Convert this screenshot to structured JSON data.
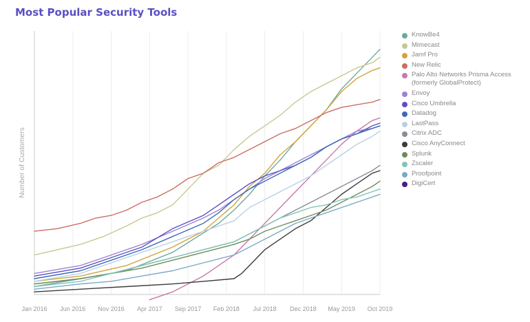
{
  "title": "Most Popular Security Tools",
  "chart_data": {
    "type": "line",
    "title": "Most Popular Security Tools",
    "xlabel": "",
    "ylabel": "Number of Customers",
    "x_ticks": [
      "Jan 2016",
      "Jun 2016",
      "Nov 2016",
      "Apr 2017",
      "Sep 2017",
      "Feb 2018",
      "Jul 2018",
      "Dec 2018",
      "May 2019",
      "Oct 2019"
    ],
    "xlim": [
      0,
      45
    ],
    "ylim": [
      0,
      100
    ],
    "grid": "vertical",
    "legend_position": "right",
    "series": [
      {
        "name": "KnowBe4",
        "color": "#6aab9c",
        "values": [
          [
            0,
            3
          ],
          [
            6,
            6
          ],
          [
            12,
            9
          ],
          [
            18,
            16
          ],
          [
            24,
            27
          ],
          [
            26,
            32
          ],
          [
            28,
            38
          ],
          [
            30,
            45
          ],
          [
            32,
            51
          ],
          [
            34,
            58
          ],
          [
            36,
            64
          ],
          [
            38,
            70
          ],
          [
            40,
            78
          ],
          [
            42,
            84
          ],
          [
            44,
            90
          ],
          [
            45,
            93
          ]
        ]
      },
      {
        "name": "Mimecast",
        "color": "#c6c98f",
        "values": [
          [
            0,
            15
          ],
          [
            3,
            17
          ],
          [
            6,
            19
          ],
          [
            9,
            22
          ],
          [
            12,
            26
          ],
          [
            14,
            29
          ],
          [
            16,
            31
          ],
          [
            18,
            34
          ],
          [
            20,
            40
          ],
          [
            22,
            46
          ],
          [
            24,
            49
          ],
          [
            26,
            55
          ],
          [
            28,
            60
          ],
          [
            30,
            64
          ],
          [
            32,
            68
          ],
          [
            34,
            73
          ],
          [
            36,
            77
          ],
          [
            38,
            80
          ],
          [
            40,
            83
          ],
          [
            42,
            86
          ],
          [
            44,
            88
          ],
          [
            45,
            90
          ]
        ]
      },
      {
        "name": "Jamf Pro",
        "color": "#d4a23b",
        "values": [
          [
            0,
            5
          ],
          [
            6,
            7
          ],
          [
            12,
            11
          ],
          [
            18,
            18
          ],
          [
            22,
            24
          ],
          [
            24,
            29
          ],
          [
            26,
            34
          ],
          [
            28,
            41
          ],
          [
            30,
            46
          ],
          [
            32,
            53
          ],
          [
            34,
            58
          ],
          [
            36,
            64
          ],
          [
            38,
            70
          ],
          [
            40,
            77
          ],
          [
            42,
            82
          ],
          [
            44,
            85
          ],
          [
            45,
            86
          ]
        ]
      },
      {
        "name": "New Relic",
        "color": "#cc6e63",
        "values": [
          [
            0,
            24
          ],
          [
            3,
            25
          ],
          [
            6,
            27
          ],
          [
            8,
            29
          ],
          [
            10,
            30
          ],
          [
            12,
            32
          ],
          [
            14,
            35
          ],
          [
            16,
            37
          ],
          [
            18,
            40
          ],
          [
            20,
            44
          ],
          [
            22,
            46
          ],
          [
            24,
            50
          ],
          [
            26,
            52
          ],
          [
            28,
            55
          ],
          [
            30,
            58
          ],
          [
            32,
            61
          ],
          [
            34,
            63
          ],
          [
            36,
            66
          ],
          [
            38,
            69
          ],
          [
            40,
            71
          ],
          [
            42,
            72
          ],
          [
            44,
            73
          ],
          [
            45,
            74
          ]
        ]
      },
      {
        "name": "Palo Alto Networks Prisma Access (formerly GlobalProtect)",
        "color": "#c877aa",
        "values": [
          [
            15,
            -2
          ],
          [
            18,
            1
          ],
          [
            20,
            4
          ],
          [
            22,
            7
          ],
          [
            24,
            11
          ],
          [
            26,
            15
          ],
          [
            28,
            21
          ],
          [
            30,
            27
          ],
          [
            32,
            33
          ],
          [
            34,
            39
          ],
          [
            36,
            45
          ],
          [
            38,
            51
          ],
          [
            40,
            57
          ],
          [
            42,
            62
          ],
          [
            44,
            66
          ],
          [
            45,
            67
          ]
        ]
      },
      {
        "name": "Envoy",
        "color": "#9d82d6",
        "values": [
          [
            0,
            8
          ],
          [
            6,
            11
          ],
          [
            10,
            15
          ],
          [
            14,
            19
          ],
          [
            18,
            24
          ],
          [
            22,
            29
          ],
          [
            24,
            32
          ],
          [
            26,
            36
          ],
          [
            28,
            40
          ],
          [
            30,
            44
          ],
          [
            32,
            47
          ],
          [
            34,
            50
          ],
          [
            36,
            53
          ],
          [
            38,
            56
          ],
          [
            40,
            59
          ],
          [
            42,
            62
          ],
          [
            44,
            63
          ],
          [
            45,
            64
          ]
        ]
      },
      {
        "name": "Cisco Umbrella",
        "color": "#5b4fc4",
        "values": [
          [
            0,
            7
          ],
          [
            6,
            10
          ],
          [
            10,
            14
          ],
          [
            14,
            18
          ],
          [
            18,
            25
          ],
          [
            22,
            30
          ],
          [
            24,
            34
          ],
          [
            26,
            38
          ],
          [
            28,
            42
          ],
          [
            30,
            45
          ],
          [
            32,
            47
          ],
          [
            34,
            49
          ],
          [
            36,
            52
          ],
          [
            38,
            56
          ],
          [
            40,
            59
          ],
          [
            42,
            61
          ],
          [
            44,
            64
          ],
          [
            45,
            65
          ]
        ]
      },
      {
        "name": "Datadog",
        "color": "#3d6ab5",
        "values": [
          [
            0,
            6
          ],
          [
            6,
            9
          ],
          [
            10,
            13
          ],
          [
            14,
            17
          ],
          [
            18,
            22
          ],
          [
            22,
            27
          ],
          [
            24,
            31
          ],
          [
            26,
            36
          ],
          [
            28,
            40
          ],
          [
            30,
            43
          ],
          [
            32,
            46
          ],
          [
            34,
            49
          ],
          [
            36,
            52
          ],
          [
            38,
            56
          ],
          [
            40,
            59
          ],
          [
            42,
            61
          ],
          [
            44,
            63
          ],
          [
            45,
            64
          ]
        ]
      },
      {
        "name": "LastPass",
        "color": "#b8d0e6",
        "values": [
          [
            0,
            5
          ],
          [
            6,
            8
          ],
          [
            10,
            12
          ],
          [
            14,
            16
          ],
          [
            18,
            20
          ],
          [
            22,
            24
          ],
          [
            26,
            28
          ],
          [
            28,
            33
          ],
          [
            30,
            36
          ],
          [
            32,
            39
          ],
          [
            34,
            42
          ],
          [
            36,
            45
          ],
          [
            38,
            49
          ],
          [
            40,
            53
          ],
          [
            42,
            57
          ],
          [
            44,
            60
          ],
          [
            45,
            62
          ]
        ]
      },
      {
        "name": "Citrix ADC",
        "color": "#868d95",
        "values": [
          [
            0,
            4
          ],
          [
            6,
            6
          ],
          [
            10,
            8
          ],
          [
            14,
            11
          ],
          [
            18,
            14
          ],
          [
            22,
            17
          ],
          [
            26,
            20
          ],
          [
            28,
            23
          ],
          [
            30,
            26
          ],
          [
            32,
            29
          ],
          [
            34,
            32
          ],
          [
            36,
            35
          ],
          [
            38,
            38
          ],
          [
            40,
            41
          ],
          [
            42,
            44
          ],
          [
            44,
            47
          ],
          [
            45,
            49
          ]
        ]
      },
      {
        "name": "Cisco AnyConnect",
        "color": "#3b3b3b",
        "values": [
          [
            0,
            1
          ],
          [
            6,
            2
          ],
          [
            12,
            3
          ],
          [
            18,
            4
          ],
          [
            22,
            5
          ],
          [
            26,
            6
          ],
          [
            27,
            8
          ],
          [
            28,
            11
          ],
          [
            30,
            17
          ],
          [
            32,
            21
          ],
          [
            34,
            25
          ],
          [
            36,
            28
          ],
          [
            38,
            33
          ],
          [
            40,
            38
          ],
          [
            42,
            42
          ],
          [
            44,
            46
          ],
          [
            45,
            47
          ]
        ]
      },
      {
        "name": "Splunk",
        "color": "#6e8b5c",
        "values": [
          [
            0,
            4
          ],
          [
            6,
            6
          ],
          [
            10,
            8
          ],
          [
            14,
            10
          ],
          [
            18,
            13
          ],
          [
            22,
            16
          ],
          [
            26,
            19
          ],
          [
            28,
            21
          ],
          [
            30,
            24
          ],
          [
            32,
            26
          ],
          [
            34,
            28
          ],
          [
            36,
            30
          ],
          [
            38,
            32
          ],
          [
            40,
            35
          ],
          [
            42,
            38
          ],
          [
            44,
            41
          ],
          [
            45,
            43
          ]
        ]
      },
      {
        "name": "Zscaler",
        "color": "#7fc5b8",
        "values": [
          [
            0,
            3
          ],
          [
            6,
            5
          ],
          [
            10,
            8
          ],
          [
            14,
            11
          ],
          [
            18,
            14
          ],
          [
            22,
            17
          ],
          [
            26,
            20
          ],
          [
            28,
            23
          ],
          [
            30,
            26
          ],
          [
            32,
            29
          ],
          [
            34,
            31
          ],
          [
            36,
            33
          ],
          [
            38,
            34
          ],
          [
            40,
            36
          ],
          [
            42,
            37
          ],
          [
            44,
            39
          ],
          [
            45,
            40
          ]
        ]
      },
      {
        "name": "Proofpoint",
        "color": "#7aa9c6",
        "values": [
          [
            0,
            2
          ],
          [
            6,
            4
          ],
          [
            10,
            5
          ],
          [
            14,
            7
          ],
          [
            18,
            9
          ],
          [
            22,
            12
          ],
          [
            26,
            15
          ],
          [
            28,
            18
          ],
          [
            30,
            21
          ],
          [
            32,
            24
          ],
          [
            34,
            27
          ],
          [
            36,
            29
          ],
          [
            38,
            31
          ],
          [
            40,
            33
          ],
          [
            42,
            35
          ],
          [
            44,
            37
          ],
          [
            45,
            38
          ]
        ]
      },
      {
        "name": "DigiCert",
        "color": "#4a1e86",
        "values": []
      }
    ]
  }
}
